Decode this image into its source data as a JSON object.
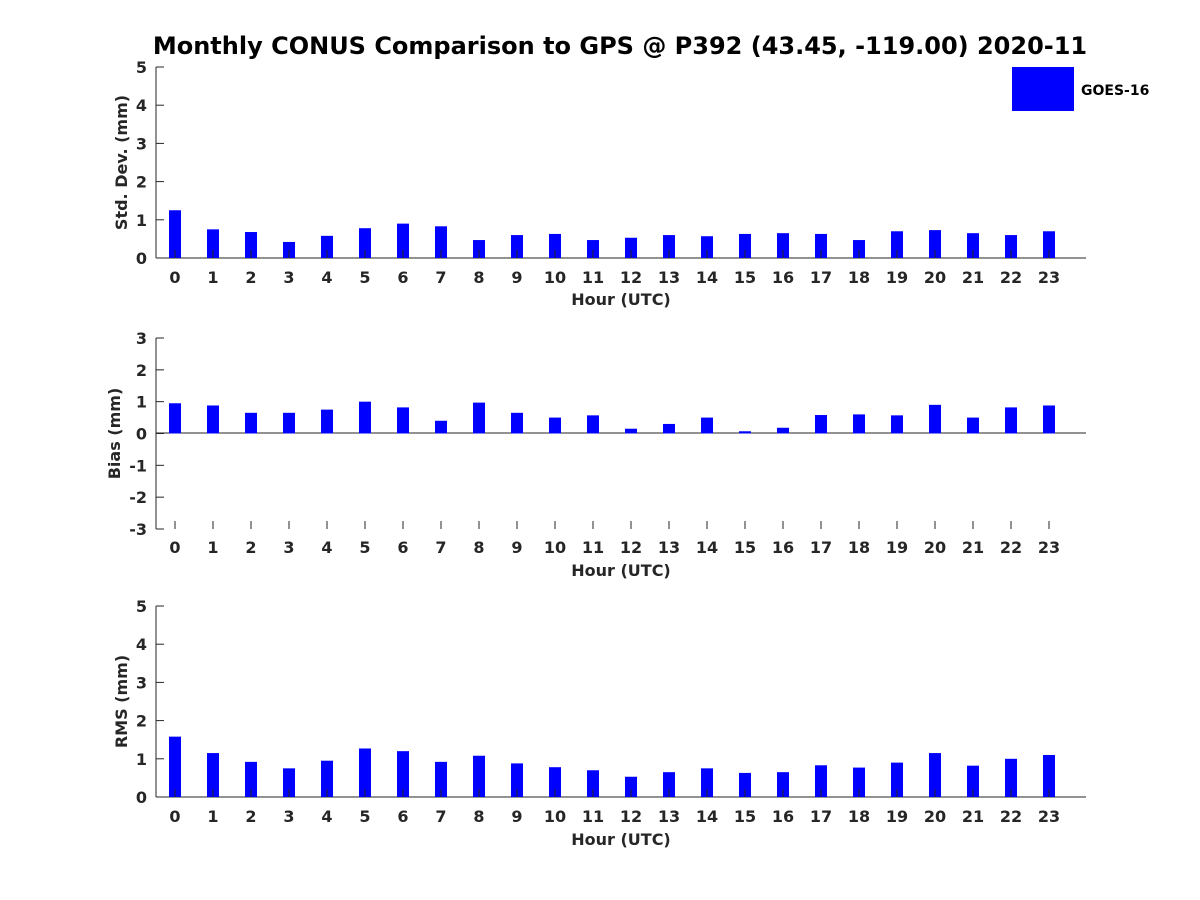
{
  "title": "Monthly CONUS Comparison to GPS @ P392 (43.45, -119.00) 2020-11",
  "bar_color": "#0000FF",
  "legend": {
    "label": "GOES-16"
  },
  "chart_data": [
    {
      "type": "bar",
      "series_name": "GOES-16",
      "categories": [
        "0",
        "1",
        "2",
        "3",
        "4",
        "5",
        "6",
        "7",
        "8",
        "9",
        "10",
        "11",
        "12",
        "13",
        "14",
        "15",
        "16",
        "17",
        "18",
        "19",
        "20",
        "21",
        "22",
        "23"
      ],
      "values": [
        1.25,
        0.75,
        0.68,
        0.42,
        0.58,
        0.78,
        0.9,
        0.83,
        0.47,
        0.6,
        0.63,
        0.47,
        0.53,
        0.6,
        0.57,
        0.63,
        0.65,
        0.63,
        0.47,
        0.7,
        0.73,
        0.65,
        0.6,
        0.7
      ],
      "xlabel": "Hour (UTC)",
      "ylabel": "Std. Dev. (mm)",
      "ylim": [
        0,
        5
      ],
      "yticks": [
        "0",
        "1",
        "2",
        "3",
        "4",
        "5"
      ]
    },
    {
      "type": "bar",
      "series_name": "GOES-16",
      "categories": [
        "0",
        "1",
        "2",
        "3",
        "4",
        "5",
        "6",
        "7",
        "8",
        "9",
        "10",
        "11",
        "12",
        "13",
        "14",
        "15",
        "16",
        "17",
        "18",
        "19",
        "20",
        "21",
        "22",
        "23"
      ],
      "values": [
        0.95,
        0.88,
        0.65,
        0.65,
        0.75,
        1.0,
        0.82,
        0.4,
        0.97,
        0.65,
        0.5,
        0.57,
        0.15,
        0.3,
        0.5,
        0.07,
        0.18,
        0.58,
        0.6,
        0.57,
        0.9,
        0.5,
        0.82,
        0.88
      ],
      "xlabel": "Hour (UTC)",
      "ylabel": "Bias (mm)",
      "ylim": [
        -3,
        3
      ],
      "yticks": [
        "-3",
        "-2",
        "-1",
        "0",
        "1",
        "2",
        "3"
      ]
    },
    {
      "type": "bar",
      "series_name": "GOES-16",
      "categories": [
        "0",
        "1",
        "2",
        "3",
        "4",
        "5",
        "6",
        "7",
        "8",
        "9",
        "10",
        "11",
        "12",
        "13",
        "14",
        "15",
        "16",
        "17",
        "18",
        "19",
        "20",
        "21",
        "22",
        "23"
      ],
      "values": [
        1.58,
        1.15,
        0.92,
        0.75,
        0.95,
        1.27,
        1.2,
        0.92,
        1.08,
        0.88,
        0.78,
        0.7,
        0.53,
        0.65,
        0.75,
        0.63,
        0.65,
        0.83,
        0.77,
        0.9,
        1.15,
        0.82,
        1.0,
        1.1
      ],
      "xlabel": "Hour (UTC)",
      "ylabel": "RMS (mm)",
      "ylim": [
        0,
        5
      ],
      "yticks": [
        "0",
        "1",
        "2",
        "3",
        "4",
        "5"
      ]
    }
  ]
}
